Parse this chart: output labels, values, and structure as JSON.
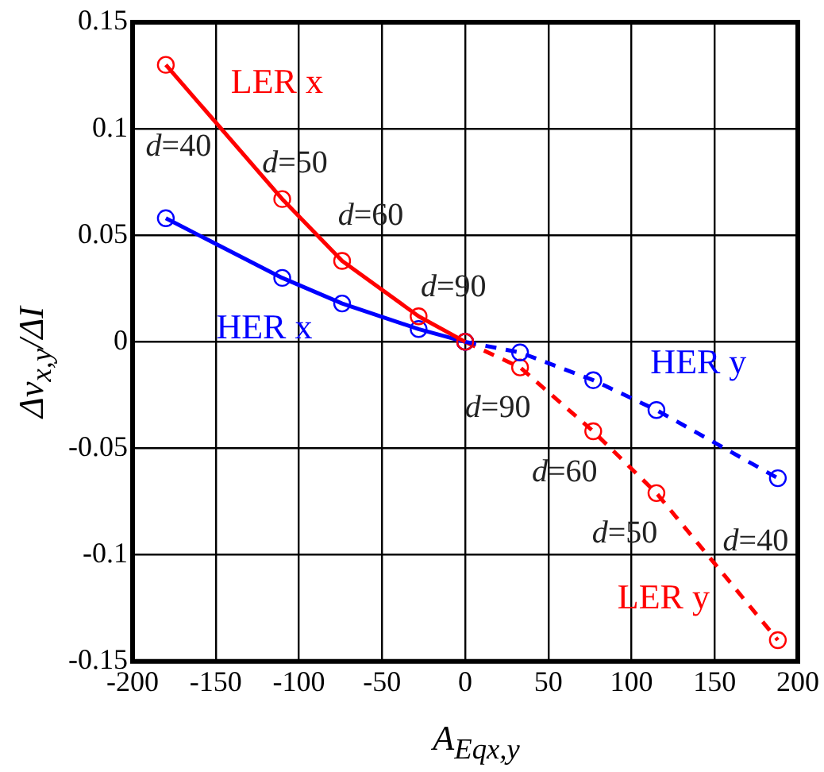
{
  "chart_data": {
    "type": "line",
    "xlabel": "A$_{Eqx,y}$",
    "ylabel": "Δv$_{x,y}$/ΔI",
    "xlim": [
      -200,
      200
    ],
    "xticks": [
      -200,
      -150,
      -100,
      -50,
      0,
      50,
      100,
      150,
      200
    ],
    "ylim": [
      -0.15,
      0.15
    ],
    "yticks": [
      -0.15,
      -0.1,
      -0.05,
      0,
      0.05,
      0.1,
      0.15
    ],
    "grid": true,
    "legend": false,
    "marker": "circle",
    "series": [
      {
        "name": "LER x",
        "color": "#ff0000",
        "line_style": "solid",
        "x": [
          -180,
          -110,
          -74,
          -28,
          0
        ],
        "values": [
          0.13,
          0.067,
          0.038,
          0.012,
          0
        ]
      },
      {
        "name": "HER x",
        "color": "#0000ff",
        "line_style": "solid",
        "x": [
          -180,
          -110,
          -74,
          -28,
          0
        ],
        "values": [
          0.058,
          0.03,
          0.018,
          0.006,
          0
        ]
      },
      {
        "name": "HER y",
        "color": "#0000ff",
        "line_style": "dashed",
        "x": [
          0,
          33,
          77,
          115,
          188
        ],
        "values": [
          0,
          -0.005,
          -0.018,
          -0.032,
          -0.064
        ]
      },
      {
        "name": "LER y",
        "color": "#ff0000",
        "line_style": "dashed",
        "x": [
          0,
          33,
          77,
          115,
          188
        ],
        "values": [
          0,
          -0.012,
          -0.042,
          -0.071,
          -0.14
        ]
      }
    ],
    "annotations": [
      {
        "text": "d=40",
        "x": -180,
        "y": 0.13
      },
      {
        "text": "d=50",
        "x": -110,
        "y": 0.067
      },
      {
        "text": "d=60",
        "x": -74,
        "y": 0.038
      },
      {
        "text": "d=90",
        "x": -28,
        "y": 0.012
      },
      {
        "text": "d=90",
        "x": 33,
        "y": -0.012
      },
      {
        "text": "d=60",
        "x": 77,
        "y": -0.042
      },
      {
        "text": "d=50",
        "x": 115,
        "y": -0.071
      },
      {
        "text": "d=40",
        "x": 188,
        "y": -0.064
      }
    ]
  }
}
